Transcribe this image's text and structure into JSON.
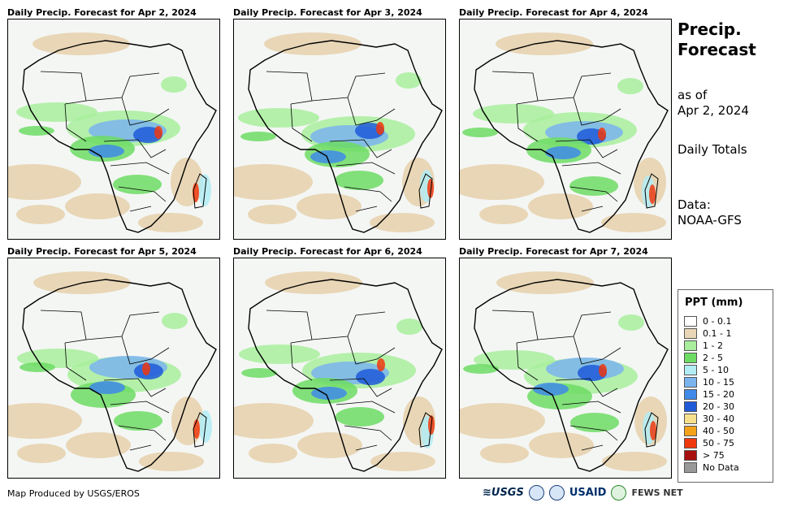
{
  "panels": [
    {
      "title": "Daily Precip. Forecast for Apr 2, 2024"
    },
    {
      "title": "Daily Precip. Forecast for Apr 3, 2024"
    },
    {
      "title": "Daily Precip. Forecast for Apr 4, 2024"
    },
    {
      "title": "Daily Precip. Forecast for Apr 5, 2024"
    },
    {
      "title": "Daily Precip. Forecast for Apr 6, 2024"
    },
    {
      "title": "Daily Precip. Forecast for Apr 7, 2024"
    }
  ],
  "sidebar": {
    "title_line1": "Precip.",
    "title_line2": "Forecast",
    "asof_line1": "as of",
    "asof_line2": "Apr 2, 2024",
    "totals": "Daily Totals",
    "data_line1": "Data:",
    "data_line2": "NOAA-GFS"
  },
  "legend": {
    "title": "PPT (mm)",
    "items": [
      {
        "label": "0 - 0.1",
        "color": "#ffffff"
      },
      {
        "label": "0.1 - 1",
        "color": "#e8d6b6"
      },
      {
        "label": "1 - 2",
        "color": "#a8ee9c"
      },
      {
        "label": "2 - 5",
        "color": "#6ddc64"
      },
      {
        "label": "5 - 10",
        "color": "#b2ecf4"
      },
      {
        "label": "10 - 15",
        "color": "#7ab4ee"
      },
      {
        "label": "15 - 20",
        "color": "#3f8ae8"
      },
      {
        "label": "20 - 30",
        "color": "#1f5ad8"
      },
      {
        "label": "30 - 40",
        "color": "#f6e08c"
      },
      {
        "label": "40 - 50",
        "color": "#f4a21c"
      },
      {
        "label": "50 - 75",
        "color": "#f0380e"
      },
      {
        "label": "> 75",
        "color": "#a81010"
      },
      {
        "label": "No Data",
        "color": "#999999"
      }
    ]
  },
  "footer": {
    "credit": "Map Produced by USGS/EROS"
  },
  "logos": {
    "usgs": "≋USGS",
    "usaid": "USAID",
    "fews": "FEWS NET"
  }
}
